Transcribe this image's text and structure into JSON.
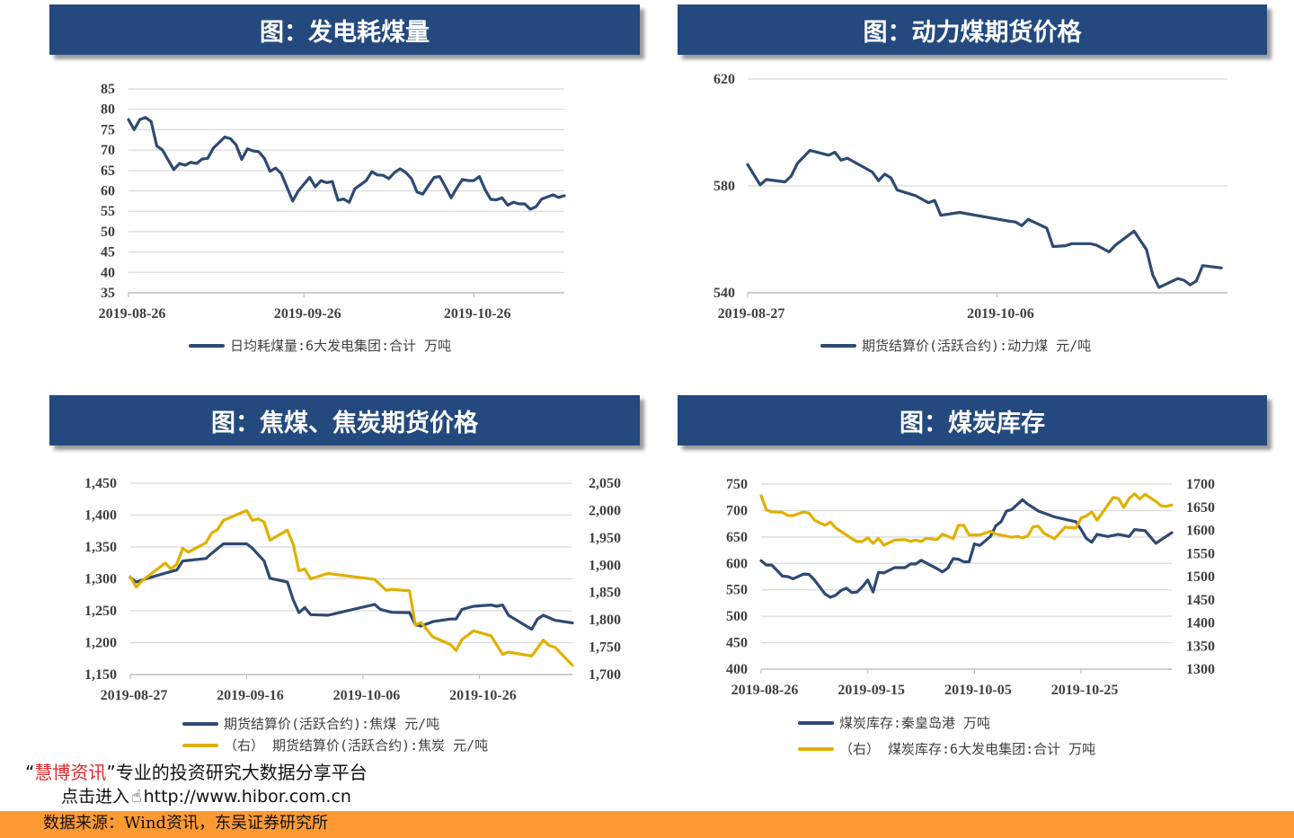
{
  "colors": {
    "header_bg": "#23497f",
    "series_navy": "#2e4a72",
    "series_gold": "#e0b000",
    "footer_bg": "#ff9a33",
    "brand_red": "#e8262b"
  },
  "chart_data": [
    {
      "type": "line",
      "title": "图：发电耗煤量",
      "xlim": [
        "2019-08-26",
        "2019-11-11"
      ],
      "xtick_labels": [
        "2019-08-26",
        "2019-09-26",
        "2019-10-26"
      ],
      "ylim": [
        35,
        85
      ],
      "ytick_labels": [
        "35",
        "40",
        "45",
        "50",
        "55",
        "60",
        "65",
        "70",
        "75",
        "80",
        "85"
      ],
      "grid": true,
      "legend_position": "bottom",
      "series": [
        {
          "name": "日均耗煤量:6大发电集团:合计  万吨",
          "axis": "left",
          "color": "#2e4a72",
          "x": [
            "2019-08-26",
            "2019-08-27",
            "2019-08-28",
            "2019-08-29",
            "2019-08-30",
            "2019-08-31",
            "2019-09-01",
            "2019-09-03",
            "2019-09-04",
            "2019-09-05",
            "2019-09-06",
            "2019-09-07",
            "2019-09-08",
            "2019-09-09",
            "2019-09-10",
            "2019-09-12",
            "2019-09-13",
            "2019-09-14",
            "2019-09-15",
            "2019-09-16",
            "2019-09-17",
            "2019-09-18",
            "2019-09-19",
            "2019-09-20",
            "2019-09-21",
            "2019-09-22",
            "2019-09-24",
            "2019-09-25",
            "2019-09-27",
            "2019-09-28",
            "2019-09-29",
            "2019-09-30",
            "2019-10-01",
            "2019-10-02",
            "2019-10-03",
            "2019-10-04",
            "2019-10-05",
            "2019-10-06",
            "2019-10-07",
            "2019-10-08",
            "2019-10-09",
            "2019-10-10",
            "2019-10-11",
            "2019-10-12",
            "2019-10-13",
            "2019-10-14",
            "2019-10-15",
            "2019-10-16",
            "2019-10-17",
            "2019-10-18",
            "2019-10-19",
            "2019-10-20",
            "2019-10-21",
            "2019-10-22",
            "2019-10-23",
            "2019-10-24",
            "2019-10-25",
            "2019-10-26",
            "2019-10-27",
            "2019-10-28",
            "2019-10-29",
            "2019-10-30",
            "2019-10-31",
            "2019-11-01",
            "2019-11-02",
            "2019-11-03",
            "2019-11-04",
            "2019-11-05",
            "2019-11-06",
            "2019-11-07",
            "2019-11-08",
            "2019-11-09",
            "2019-11-10",
            "2019-11-11"
          ],
          "y": [
            77.5,
            75,
            77.5,
            78,
            77,
            71,
            70,
            65.2,
            66.7,
            66.3,
            67,
            66.7,
            67.8,
            68,
            70.5,
            73.2,
            72.8,
            71.3,
            67.7,
            70.3,
            69.8,
            69.6,
            68,
            64.8,
            65.6,
            64.2,
            57.5,
            60,
            63.3,
            61,
            62.5,
            62,
            62.3,
            57.7,
            58,
            57.2,
            60.5,
            61.5,
            62.5,
            64.7,
            63.9,
            63.8,
            63,
            64.5,
            65.4,
            64.5,
            63,
            59.7,
            59.2,
            61.3,
            63.3,
            63.5,
            61,
            58.3,
            60.7,
            62.8,
            62.5,
            62.5,
            63.5,
            60.3,
            57.9,
            57.8,
            58.3,
            56.5,
            57.2,
            56.8,
            56.8,
            55.5,
            56.1,
            58,
            58.5,
            59,
            58.4,
            58.8
          ]
        }
      ]
    },
    {
      "type": "line",
      "title": "图：动力煤期货价格",
      "xlim": [
        "2019-08-27",
        "2019-11-12"
      ],
      "xtick_labels": [
        "2019-08-27",
        "2019-10-06"
      ],
      "ylim": [
        540,
        620
      ],
      "ytick_labels": [
        "540",
        "580",
        "620"
      ],
      "grid": true,
      "legend_position": "bottom",
      "series": [
        {
          "name": "期货结算价(活跃合约):动力煤  元/吨",
          "axis": "left",
          "color": "#2e4a72",
          "x": [
            "2019-08-27",
            "2019-08-29",
            "2019-08-30",
            "2019-09-02",
            "2019-09-03",
            "2019-09-04",
            "2019-09-06",
            "2019-09-09",
            "2019-09-10",
            "2019-09-11",
            "2019-09-12",
            "2019-09-16",
            "2019-09-17",
            "2019-09-18",
            "2019-09-19",
            "2019-09-20",
            "2019-09-23",
            "2019-09-25",
            "2019-09-26",
            "2019-09-27",
            "2019-09-30",
            "2019-10-08",
            "2019-10-09",
            "2019-10-10",
            "2019-10-11",
            "2019-10-14",
            "2019-10-15",
            "2019-10-17",
            "2019-10-18",
            "2019-10-21",
            "2019-10-22",
            "2019-10-24",
            "2019-10-25",
            "2019-10-28",
            "2019-10-30",
            "2019-10-31",
            "2019-11-01",
            "2019-11-04",
            "2019-11-05",
            "2019-11-06",
            "2019-11-07",
            "2019-11-08",
            "2019-11-11"
          ],
          "y": [
            588,
            580.4,
            582.4,
            581.5,
            583.7,
            588.5,
            593.3,
            591.5,
            592.6,
            589.6,
            590.4,
            585.2,
            582,
            584.4,
            583,
            578.5,
            576.3,
            573.7,
            574.6,
            569,
            570.1,
            566.8,
            566.5,
            565.1,
            567.5,
            564.2,
            557.3,
            557.6,
            558.4,
            558.4,
            557.8,
            555.3,
            557.8,
            563.1,
            556.2,
            546.7,
            542,
            545.3,
            544.7,
            543,
            544.4,
            550.2,
            549.3
          ]
        }
      ]
    },
    {
      "type": "line",
      "title": "图：焦煤、焦炭期货价格",
      "xlim": [
        "2019-08-27",
        "2019-11-11"
      ],
      "xtick_labels": [
        "2019-08-27",
        "2019-09-16",
        "2019-10-06",
        "2019-10-26"
      ],
      "ylim": [
        1150,
        1450
      ],
      "ytick_labels": [
        "1,150",
        "1,200",
        "1,250",
        "1,300",
        "1,350",
        "1,400",
        "1,450"
      ],
      "ylim_right": [
        1700,
        2050
      ],
      "ytick_labels_right": [
        "1,700",
        "1,750",
        "1,800",
        "1,850",
        "1,900",
        "1,950",
        "2,000",
        "2,050"
      ],
      "grid": true,
      "legend_position": "bottom",
      "series": [
        {
          "name": "期货结算价(活跃合约):焦煤  元/吨",
          "axis": "left",
          "color": "#2e4a72",
          "x": [
            "2019-08-27",
            "2019-08-28",
            "2019-08-30",
            "2019-09-02",
            "2019-09-04",
            "2019-09-05",
            "2019-09-09",
            "2019-09-10",
            "2019-09-12",
            "2019-09-16",
            "2019-09-17",
            "2019-09-19",
            "2019-09-20",
            "2019-09-23",
            "2019-09-24",
            "2019-09-25",
            "2019-09-26",
            "2019-09-27",
            "2019-09-30",
            "2019-10-08",
            "2019-10-09",
            "2019-10-11",
            "2019-10-14",
            "2019-10-15",
            "2019-10-16",
            "2019-10-18",
            "2019-10-21",
            "2019-10-22",
            "2019-10-23",
            "2019-10-25",
            "2019-10-28",
            "2019-10-29",
            "2019-10-30",
            "2019-10-31",
            "2019-11-04",
            "2019-11-05",
            "2019-11-06",
            "2019-11-08",
            "2019-11-11"
          ],
          "y": [
            1302,
            1295,
            1301,
            1309,
            1314,
            1328,
            1332,
            1340,
            1355,
            1355,
            1348,
            1328,
            1301,
            1295,
            1267,
            1247,
            1255,
            1244,
            1243,
            1260,
            1252,
            1247.5,
            1247,
            1228,
            1226,
            1233,
            1237,
            1237,
            1252,
            1257,
            1259,
            1257,
            1259,
            1243,
            1221,
            1237,
            1243,
            1235,
            1231
          ]
        },
        {
          "name": "（右）  期货结算价(活跃合约):焦炭  元/吨",
          "axis": "right",
          "color": "#e0b000",
          "x": [
            "2019-08-27",
            "2019-08-28",
            "2019-08-29",
            "2019-09-02",
            "2019-09-03",
            "2019-09-04",
            "2019-09-05",
            "2019-09-06",
            "2019-09-09",
            "2019-09-10",
            "2019-09-11",
            "2019-09-12",
            "2019-09-16",
            "2019-09-17",
            "2019-09-18",
            "2019-09-19",
            "2019-09-20",
            "2019-09-23",
            "2019-09-24",
            "2019-09-25",
            "2019-09-26",
            "2019-09-27",
            "2019-09-30",
            "2019-10-08",
            "2019-10-10",
            "2019-10-11",
            "2019-10-14",
            "2019-10-15",
            "2019-10-16",
            "2019-10-18",
            "2019-10-21",
            "2019-10-22",
            "2019-10-23",
            "2019-10-25",
            "2019-10-28",
            "2019-10-30",
            "2019-10-31",
            "2019-11-04",
            "2019-11-06",
            "2019-11-07",
            "2019-11-08",
            "2019-11-11"
          ],
          "y": [
            1879,
            1860,
            1871,
            1904,
            1893,
            1902,
            1931,
            1924,
            1941,
            1959,
            1965,
            1982,
            2000,
            1982,
            1985,
            1979,
            1946,
            1964,
            1938,
            1890,
            1893,
            1875,
            1885,
            1874,
            1854,
            1856,
            1853,
            1791,
            1795,
            1769,
            1755,
            1744,
            1764,
            1780,
            1771,
            1737,
            1741,
            1734,
            1763,
            1753,
            1750,
            1717
          ]
        }
      ]
    },
    {
      "type": "line",
      "title": "图：煤炭库存",
      "xlim": [
        "2019-08-26",
        "2019-11-11"
      ],
      "xtick_labels": [
        "2019-08-26",
        "2019-09-15",
        "2019-10-05",
        "2019-10-25"
      ],
      "ylim": [
        400,
        750
      ],
      "ytick_labels": [
        "400",
        "450",
        "500",
        "550",
        "600",
        "650",
        "700",
        "750"
      ],
      "ylim_right": [
        1300,
        1700
      ],
      "ytick_labels_right": [
        "1300",
        "1350",
        "1400",
        "1450",
        "1500",
        "1550",
        "1600",
        "1650",
        "1700"
      ],
      "grid": true,
      "legend_position": "bottom",
      "series": [
        {
          "name": "煤炭库存:秦皇岛港  万吨",
          "axis": "left",
          "color": "#2e4a72",
          "x": [
            "2019-08-26",
            "2019-08-27",
            "2019-08-28",
            "2019-08-30",
            "2019-08-31",
            "2019-09-01",
            "2019-09-03",
            "2019-09-04",
            "2019-09-05",
            "2019-09-07",
            "2019-09-08",
            "2019-09-09",
            "2019-09-10",
            "2019-09-11",
            "2019-09-12",
            "2019-09-13",
            "2019-09-14",
            "2019-09-15",
            "2019-09-16",
            "2019-09-17",
            "2019-09-18",
            "2019-09-20",
            "2019-09-22",
            "2019-09-23",
            "2019-09-24",
            "2019-09-25",
            "2019-09-28",
            "2019-09-29",
            "2019-09-30",
            "2019-10-01",
            "2019-10-02",
            "2019-10-03",
            "2019-10-04",
            "2019-10-05",
            "2019-10-06",
            "2019-10-08",
            "2019-10-09",
            "2019-10-10",
            "2019-10-11",
            "2019-10-12",
            "2019-10-14",
            "2019-10-15",
            "2019-10-17",
            "2019-10-20",
            "2019-10-23",
            "2019-10-24",
            "2019-10-25",
            "2019-10-26",
            "2019-10-27",
            "2019-10-28",
            "2019-10-30",
            "2019-11-01",
            "2019-11-03",
            "2019-11-04",
            "2019-11-06",
            "2019-11-08",
            "2019-11-11"
          ],
          "y": [
            605,
            597,
            597,
            576,
            575,
            571,
            580,
            579,
            568.5,
            542,
            536,
            540,
            549,
            553,
            545,
            546,
            556,
            568.5,
            546,
            583,
            582,
            592,
            592,
            599,
            599,
            606,
            590,
            584,
            591,
            609,
            608,
            603,
            603,
            637,
            634,
            651,
            671,
            679,
            699,
            702,
            720.5,
            712,
            699,
            688,
            681,
            679,
            664,
            647,
            640,
            655,
            651,
            655,
            651,
            664,
            662,
            638,
            658
          ]
        },
        {
          "name": "（右）  煤炭库存:6大发电集团:合计  万吨",
          "axis": "right",
          "color": "#e0b000",
          "x": [
            "2019-08-26",
            "2019-08-27",
            "2019-08-28",
            "2019-08-30",
            "2019-08-31",
            "2019-09-01",
            "2019-09-03",
            "2019-09-04",
            "2019-09-05",
            "2019-09-07",
            "2019-09-08",
            "2019-09-09",
            "2019-09-11",
            "2019-09-12",
            "2019-09-13",
            "2019-09-14",
            "2019-09-15",
            "2019-09-16",
            "2019-09-17",
            "2019-09-18",
            "2019-09-20",
            "2019-09-22",
            "2019-09-23",
            "2019-09-24",
            "2019-09-25",
            "2019-09-26",
            "2019-09-28",
            "2019-09-29",
            "2019-10-01",
            "2019-10-02",
            "2019-10-03",
            "2019-10-04",
            "2019-10-06",
            "2019-10-08",
            "2019-10-09",
            "2019-10-12",
            "2019-10-13",
            "2019-10-14",
            "2019-10-15",
            "2019-10-16",
            "2019-10-17",
            "2019-10-18",
            "2019-10-20",
            "2019-10-22",
            "2019-10-24",
            "2019-10-25",
            "2019-10-26",
            "2019-10-27",
            "2019-10-28",
            "2019-10-31",
            "2019-11-01",
            "2019-11-02",
            "2019-11-03",
            "2019-11-04",
            "2019-11-05",
            "2019-11-06",
            "2019-11-08",
            "2019-11-09",
            "2019-11-10",
            "2019-11-11"
          ],
          "y": [
            1675,
            1644,
            1640,
            1639,
            1632,
            1632,
            1640,
            1637,
            1622,
            1611,
            1618,
            1605,
            1590,
            1582,
            1576,
            1576,
            1584,
            1572,
            1583,
            1568,
            1579,
            1580,
            1576,
            1579,
            1576,
            1583,
            1580,
            1592,
            1582,
            1611,
            1611,
            1590,
            1590,
            1598,
            1592,
            1585,
            1587,
            1584,
            1588,
            1608,
            1609,
            1594,
            1582,
            1607,
            1605,
            1627,
            1631,
            1640,
            1622,
            1671,
            1669,
            1650,
            1669,
            1679,
            1668,
            1678,
            1663,
            1653,
            1652,
            1655
          ]
        }
      ]
    }
  ],
  "footer": {
    "slogan_quote_open": "“",
    "slogan_brand": "慧博资讯",
    "slogan_quote_close": "”",
    "slogan_text": "专业的投资研究大数据分享平台",
    "link_prefix": "点击进入",
    "link_url": "http://www.hibor.com.cn",
    "source": "数据来源：Wind资讯，东吴证券研究所",
    "hand_icon": "pointing-hand-icon"
  }
}
